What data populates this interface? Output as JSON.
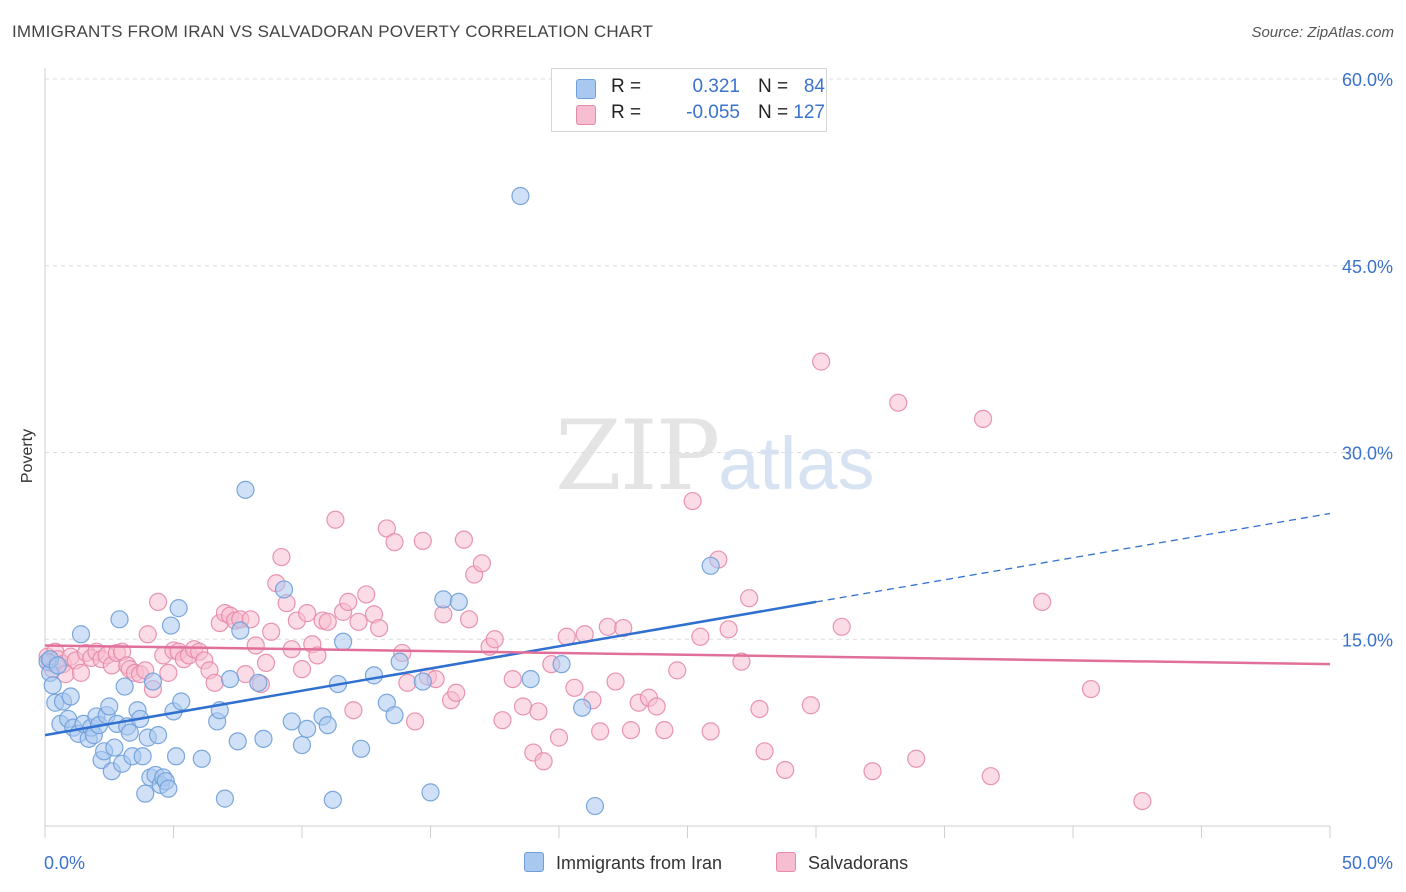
{
  "title": "IMMIGRANTS FROM IRAN VS SALVADORAN POVERTY CORRELATION CHART",
  "source": "Source: ZipAtlas.com",
  "watermark": {
    "zip": "ZIP",
    "atlas": "atlas"
  },
  "legend": {
    "rows": [
      {
        "r_label": "R =",
        "r_value": "0.321",
        "n_label": "N =",
        "n_value": "84",
        "color": "#a9c8f0",
        "border": "#6f9fd8"
      },
      {
        "r_label": "R =",
        "r_value": "-0.055",
        "n_label": "N =",
        "n_value": "127",
        "color": "#f7bdd0",
        "border": "#e58aa8"
      }
    ]
  },
  "chart_data": {
    "type": "scatter",
    "title": "IMMIGRANTS FROM IRAN VS SALVADORAN POVERTY CORRELATION CHART",
    "xlabel": "",
    "ylabel": "Poverty",
    "xlim": [
      0,
      50
    ],
    "ylim": [
      0,
      60
    ],
    "x_tick_labels": [
      "0.0%",
      "50.0%"
    ],
    "y_tick_values": [
      15,
      30,
      45,
      60
    ],
    "y_tick_labels": [
      "15.0%",
      "30.0%",
      "45.0%",
      "60.0%"
    ],
    "grid": "horizontal dashed",
    "legend_position": "top-center",
    "series": [
      {
        "name": "Immigrants from Iran",
        "color": "#6f9fd8",
        "fill": "#a9c8f0",
        "trend": {
          "x": [
            0,
            30
          ],
          "y": [
            7.3,
            18.0
          ],
          "dashed_extension": {
            "x": [
              30,
              50
            ],
            "y": [
              18.0,
              25.1
            ]
          }
        },
        "points": [
          [
            0.1,
            13.2
          ],
          [
            0.2,
            12.3
          ],
          [
            0.3,
            11.3
          ],
          [
            0.4,
            9.9
          ],
          [
            0.6,
            8.2
          ],
          [
            0.7,
            10.0
          ],
          [
            0.9,
            8.6
          ],
          [
            1.0,
            10.4
          ],
          [
            1.1,
            7.9
          ],
          [
            1.3,
            7.4
          ],
          [
            1.4,
            15.4
          ],
          [
            1.5,
            8.2
          ],
          [
            1.7,
            7.0
          ],
          [
            1.8,
            7.9
          ],
          [
            1.9,
            7.3
          ],
          [
            2.0,
            8.8
          ],
          [
            2.1,
            8.1
          ],
          [
            2.2,
            5.3
          ],
          [
            2.3,
            6.0
          ],
          [
            2.4,
            8.9
          ],
          [
            2.5,
            9.6
          ],
          [
            2.6,
            4.4
          ],
          [
            2.7,
            6.3
          ],
          [
            2.8,
            8.2
          ],
          [
            2.9,
            16.6
          ],
          [
            3.0,
            5.0
          ],
          [
            3.1,
            11.2
          ],
          [
            3.2,
            8.0
          ],
          [
            3.3,
            7.5
          ],
          [
            3.4,
            5.6
          ],
          [
            3.6,
            9.3
          ],
          [
            3.7,
            8.6
          ],
          [
            3.8,
            5.6
          ],
          [
            3.9,
            2.6
          ],
          [
            4.0,
            7.1
          ],
          [
            4.1,
            3.9
          ],
          [
            4.2,
            11.6
          ],
          [
            4.3,
            4.1
          ],
          [
            4.4,
            7.3
          ],
          [
            4.5,
            3.3
          ],
          [
            4.6,
            3.9
          ],
          [
            4.7,
            3.6
          ],
          [
            4.8,
            3.0
          ],
          [
            4.9,
            16.1
          ],
          [
            5.0,
            9.2
          ],
          [
            5.1,
            5.6
          ],
          [
            5.2,
            17.5
          ],
          [
            5.3,
            10.0
          ],
          [
            6.1,
            5.4
          ],
          [
            6.7,
            8.4
          ],
          [
            6.8,
            9.3
          ],
          [
            7.0,
            2.2
          ],
          [
            7.2,
            11.8
          ],
          [
            7.5,
            6.8
          ],
          [
            7.6,
            15.7
          ],
          [
            7.8,
            27.0
          ],
          [
            8.3,
            11.5
          ],
          [
            8.5,
            7.0
          ],
          [
            9.3,
            19.0
          ],
          [
            9.6,
            8.4
          ],
          [
            10.0,
            6.5
          ],
          [
            10.2,
            7.8
          ],
          [
            10.8,
            8.8
          ],
          [
            11.0,
            8.1
          ],
          [
            11.2,
            2.1
          ],
          [
            11.4,
            11.4
          ],
          [
            11.6,
            14.8
          ],
          [
            12.3,
            6.2
          ],
          [
            12.8,
            12.1
          ],
          [
            13.3,
            9.9
          ],
          [
            13.6,
            8.9
          ],
          [
            13.8,
            13.2
          ],
          [
            14.7,
            11.6
          ],
          [
            15.0,
            2.7
          ],
          [
            15.5,
            18.2
          ],
          [
            16.1,
            18.0
          ],
          [
            18.5,
            50.6
          ],
          [
            18.9,
            11.8
          ],
          [
            20.1,
            13.0
          ],
          [
            20.9,
            9.5
          ],
          [
            21.4,
            1.6
          ],
          [
            25.9,
            20.9
          ],
          [
            0.2,
            13.4
          ],
          [
            0.5,
            12.9
          ]
        ]
      },
      {
        "name": "Salvadorans",
        "color": "#e58aa8",
        "fill": "#f7bdd0",
        "trend": {
          "x": [
            0,
            50
          ],
          "y": [
            14.5,
            13.0
          ]
        },
        "points": [
          [
            0.1,
            13.6
          ],
          [
            0.2,
            13.1
          ],
          [
            0.3,
            12.6
          ],
          [
            0.4,
            14.0
          ],
          [
            0.5,
            13.4
          ],
          [
            0.7,
            13.0
          ],
          [
            0.8,
            12.2
          ],
          [
            1.0,
            13.6
          ],
          [
            1.2,
            13.3
          ],
          [
            1.4,
            12.3
          ],
          [
            1.6,
            13.9
          ],
          [
            1.8,
            13.5
          ],
          [
            2.0,
            14.0
          ],
          [
            2.2,
            13.4
          ],
          [
            2.4,
            13.7
          ],
          [
            2.6,
            12.9
          ],
          [
            2.8,
            13.9
          ],
          [
            3.0,
            14.0
          ],
          [
            3.2,
            12.9
          ],
          [
            3.3,
            12.6
          ],
          [
            3.5,
            12.3
          ],
          [
            3.7,
            12.2
          ],
          [
            3.9,
            12.5
          ],
          [
            4.0,
            15.4
          ],
          [
            4.2,
            11.0
          ],
          [
            4.4,
            18.0
          ],
          [
            4.6,
            13.7
          ],
          [
            4.8,
            12.3
          ],
          [
            5.0,
            14.1
          ],
          [
            5.2,
            14.0
          ],
          [
            5.4,
            13.4
          ],
          [
            5.6,
            13.7
          ],
          [
            5.8,
            14.2
          ],
          [
            6.0,
            14.0
          ],
          [
            6.2,
            13.3
          ],
          [
            6.4,
            12.5
          ],
          [
            6.6,
            11.5
          ],
          [
            6.8,
            16.3
          ],
          [
            7.0,
            17.1
          ],
          [
            7.2,
            16.9
          ],
          [
            7.4,
            16.5
          ],
          [
            7.6,
            16.6
          ],
          [
            7.8,
            12.2
          ],
          [
            8.0,
            16.6
          ],
          [
            8.2,
            14.5
          ],
          [
            8.4,
            11.4
          ],
          [
            8.6,
            13.1
          ],
          [
            8.8,
            15.6
          ],
          [
            9.0,
            19.5
          ],
          [
            9.2,
            21.6
          ],
          [
            9.4,
            17.9
          ],
          [
            9.6,
            14.2
          ],
          [
            9.8,
            16.5
          ],
          [
            10.0,
            12.6
          ],
          [
            10.2,
            17.1
          ],
          [
            10.4,
            14.6
          ],
          [
            10.6,
            13.7
          ],
          [
            10.8,
            16.5
          ],
          [
            11.0,
            16.4
          ],
          [
            11.3,
            24.6
          ],
          [
            11.6,
            17.2
          ],
          [
            11.8,
            18.0
          ],
          [
            12.0,
            9.3
          ],
          [
            12.2,
            16.4
          ],
          [
            12.5,
            18.6
          ],
          [
            12.8,
            17.0
          ],
          [
            13.0,
            15.9
          ],
          [
            13.3,
            23.9
          ],
          [
            13.6,
            22.8
          ],
          [
            13.9,
            13.9
          ],
          [
            14.1,
            11.5
          ],
          [
            14.4,
            8.4
          ],
          [
            14.7,
            22.9
          ],
          [
            14.9,
            12.0
          ],
          [
            15.2,
            11.8
          ],
          [
            15.5,
            17.0
          ],
          [
            15.8,
            10.1
          ],
          [
            16.0,
            10.7
          ],
          [
            16.3,
            23.0
          ],
          [
            16.5,
            16.6
          ],
          [
            16.7,
            20.2
          ],
          [
            17.0,
            21.1
          ],
          [
            17.3,
            14.4
          ],
          [
            17.5,
            15.0
          ],
          [
            17.8,
            8.5
          ],
          [
            18.2,
            11.8
          ],
          [
            18.6,
            9.6
          ],
          [
            19.0,
            5.9
          ],
          [
            19.2,
            9.2
          ],
          [
            19.4,
            5.2
          ],
          [
            19.7,
            13.0
          ],
          [
            20.0,
            7.1
          ],
          [
            20.3,
            15.2
          ],
          [
            20.6,
            11.1
          ],
          [
            21.0,
            15.4
          ],
          [
            21.3,
            10.1
          ],
          [
            21.6,
            7.6
          ],
          [
            21.9,
            16.0
          ],
          [
            22.2,
            11.6
          ],
          [
            22.5,
            15.9
          ],
          [
            22.8,
            7.7
          ],
          [
            23.1,
            9.9
          ],
          [
            23.5,
            10.3
          ],
          [
            23.8,
            9.6
          ],
          [
            24.1,
            7.7
          ],
          [
            24.6,
            12.5
          ],
          [
            25.2,
            26.1
          ],
          [
            25.5,
            15.2
          ],
          [
            25.9,
            7.6
          ],
          [
            26.2,
            21.4
          ],
          [
            26.6,
            15.8
          ],
          [
            27.1,
            13.2
          ],
          [
            27.4,
            18.3
          ],
          [
            27.8,
            9.4
          ],
          [
            28.0,
            6.0
          ],
          [
            28.8,
            4.5
          ],
          [
            29.8,
            9.7
          ],
          [
            30.2,
            37.3
          ],
          [
            31.0,
            16.0
          ],
          [
            32.2,
            4.4
          ],
          [
            33.2,
            34.0
          ],
          [
            33.9,
            5.4
          ],
          [
            36.5,
            32.7
          ],
          [
            36.8,
            4.0
          ],
          [
            38.8,
            18.0
          ],
          [
            40.7,
            11.0
          ],
          [
            42.7,
            2.0
          ]
        ]
      }
    ]
  },
  "bottom_legend": [
    {
      "label": "Immigrants from Iran",
      "color": "#a9c8f0",
      "border": "#6f9fd8"
    },
    {
      "label": "Salvadorans",
      "color": "#f7bdd0",
      "border": "#e58aa8"
    }
  ]
}
